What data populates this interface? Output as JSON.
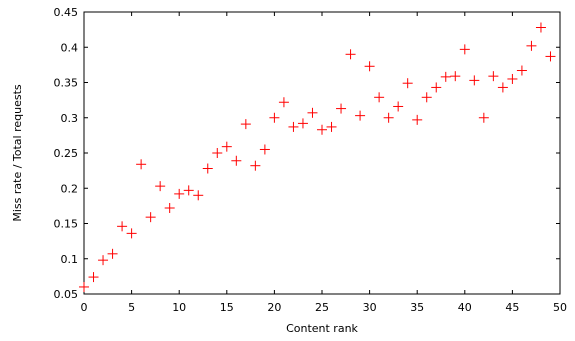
{
  "chart_data": {
    "type": "scatter",
    "title": "",
    "xlabel": "Content rank",
    "ylabel": "Miss rate / Total requests",
    "xlim": [
      0,
      50
    ],
    "ylim": [
      0.05,
      0.45
    ],
    "xticks": [
      0,
      5,
      10,
      15,
      20,
      25,
      30,
      35,
      40,
      45,
      50
    ],
    "yticks": [
      0.05,
      0.1,
      0.15,
      0.2,
      0.25,
      0.3,
      0.35,
      0.4,
      0.45
    ],
    "ytick_labels": [
      "0.05",
      "0.1",
      "0.15",
      "0.2",
      "0.25",
      "0.3",
      "0.35",
      "0.4",
      "0.45"
    ],
    "grid": false,
    "marker": "plus",
    "marker_color": "#ff0000",
    "series": [
      {
        "x": [
          0,
          1,
          2,
          3,
          4,
          5,
          6,
          7,
          8,
          9,
          10,
          11,
          12,
          13,
          14,
          15,
          16,
          17,
          18,
          19,
          20,
          21,
          22,
          23,
          24,
          25,
          26,
          27,
          28,
          29,
          30,
          31,
          32,
          33,
          34,
          35,
          36,
          37,
          38,
          39,
          40,
          41,
          42,
          43,
          44,
          45,
          46,
          47,
          48,
          49
        ],
        "y": [
          0.06,
          0.074,
          0.098,
          0.107,
          0.146,
          0.136,
          0.234,
          0.159,
          0.203,
          0.172,
          0.192,
          0.197,
          0.19,
          0.228,
          0.25,
          0.259,
          0.239,
          0.291,
          0.232,
          0.255,
          0.3,
          0.322,
          0.287,
          0.292,
          0.307,
          0.283,
          0.287,
          0.313,
          0.39,
          0.303,
          0.373,
          0.329,
          0.3,
          0.316,
          0.349,
          0.297,
          0.329,
          0.343,
          0.358,
          0.359,
          0.397,
          0.353,
          0.3,
          0.359,
          0.343,
          0.355,
          0.367,
          0.402,
          0.428,
          0.387
        ]
      }
    ]
  }
}
